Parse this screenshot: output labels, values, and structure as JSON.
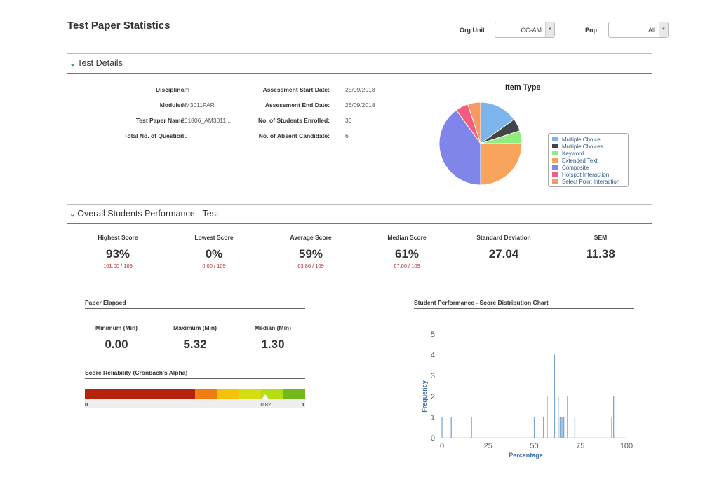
{
  "header": {
    "title": "Test Paper Statistics",
    "org_unit_label": "Org Unit",
    "org_unit_value": "CC-AM",
    "pnp_label": "Pnp",
    "pnp_value": "All"
  },
  "test_details": {
    "heading": "Test Details",
    "left": [
      {
        "label": "Discipline:",
        "value": "am"
      },
      {
        "label": "Modules:",
        "value": "AM3011PAR"
      },
      {
        "label": "Test Paper Name:",
        "value": "201806_AM3011..."
      },
      {
        "label": "Total No. of Question:",
        "value": "40"
      }
    ],
    "right": [
      {
        "label": "Assessment Start Date:",
        "value": "25/09/2018"
      },
      {
        "label": "Assessment End Date:",
        "value": "26/09/2018"
      },
      {
        "label": "No. of Students Enrolled:",
        "value": "30"
      },
      {
        "label": "No. of Absent Candidate:",
        "value": "6"
      }
    ]
  },
  "item_type_chart": {
    "title": "Item Type",
    "legend": [
      {
        "label": "Multiple Choice",
        "color": "#7cb5ec"
      },
      {
        "label": "Multiple Choices",
        "color": "#434348"
      },
      {
        "label": "Keyword",
        "color": "#90ed7d"
      },
      {
        "label": "Extended Text",
        "color": "#f7a35c"
      },
      {
        "label": "Composite",
        "color": "#8085e9"
      },
      {
        "label": "Hotspot Interaction",
        "color": "#f15c80"
      },
      {
        "label": "Select Point Interaction",
        "color": "#f89863"
      }
    ]
  },
  "performance": {
    "heading": "Overall Students Performance - Test",
    "stats": [
      {
        "label": "Highest Score",
        "value": "93%",
        "sub": "101.00 / 109"
      },
      {
        "label": "Lowest Score",
        "value": "0%",
        "sub": "0.00 / 109"
      },
      {
        "label": "Average Score",
        "value": "59%",
        "sub": "63.86 / 109"
      },
      {
        "label": "Median Score",
        "value": "61%",
        "sub": "67.00 / 109"
      },
      {
        "label": "Standard Deviation",
        "value": "27.04",
        "sub": ""
      },
      {
        "label": "SEM",
        "value": "11.38",
        "sub": ""
      }
    ]
  },
  "paper_elapsed": {
    "heading": "Paper Elapsed",
    "stats": [
      {
        "label": "Minimum (Min)",
        "value": "0.00"
      },
      {
        "label": "Maximum (Min)",
        "value": "5.32"
      },
      {
        "label": "Median (Min)",
        "value": "1.30"
      }
    ]
  },
  "reliability": {
    "heading": "Score Reliability (Cronbach's Alpha)",
    "min_label": "0",
    "max_label": "1",
    "marker_label": "0.82",
    "value": 0.82,
    "segments": [
      {
        "color": "#b5230f",
        "fraction": 0.5
      },
      {
        "color": "#ee7d12",
        "fraction": 0.1
      },
      {
        "color": "#f3c20f",
        "fraction": 0.1
      },
      {
        "color": "#d4dc12",
        "fraction": 0.1
      },
      {
        "color": "#b6dc14",
        "fraction": 0.1
      },
      {
        "color": "#72b81a",
        "fraction": 0.1
      }
    ]
  },
  "chart_data": [
    {
      "type": "pie",
      "title": "Item Type",
      "slices": [
        {
          "name": "Multiple Choice",
          "value": 15,
          "color": "#7cb5ec"
        },
        {
          "name": "Multiple Choices",
          "value": 5,
          "color": "#434348"
        },
        {
          "name": "Keyword",
          "value": 5,
          "color": "#90ed7d"
        },
        {
          "name": "Extended Text",
          "value": 25,
          "color": "#f7a35c"
        },
        {
          "name": "Composite",
          "value": 40,
          "color": "#8085e9"
        },
        {
          "name": "Hotspot Interaction",
          "value": 5,
          "color": "#f15c80"
        },
        {
          "name": "Select Point Interaction",
          "value": 5,
          "color": "#f89863"
        }
      ]
    },
    {
      "type": "bar",
      "title": "Student Performance - Score Distribution Chart",
      "xlabel": "Percentage",
      "ylabel": "Frequency",
      "xlim": [
        0,
        100
      ],
      "ylim": [
        0,
        5
      ],
      "xticks": [
        "0",
        "25",
        "50",
        "75",
        "100"
      ],
      "yticks": [
        "0",
        "1",
        "2",
        "3",
        "4",
        "5"
      ],
      "color": "#7aa6cf",
      "x": [
        0,
        5,
        16,
        50,
        55,
        57,
        61,
        63,
        64,
        65,
        66,
        68,
        72,
        92,
        93
      ],
      "values": [
        1,
        1,
        1,
        1,
        1,
        2,
        4,
        2,
        1,
        1,
        1,
        2,
        1,
        1,
        2
      ]
    }
  ]
}
